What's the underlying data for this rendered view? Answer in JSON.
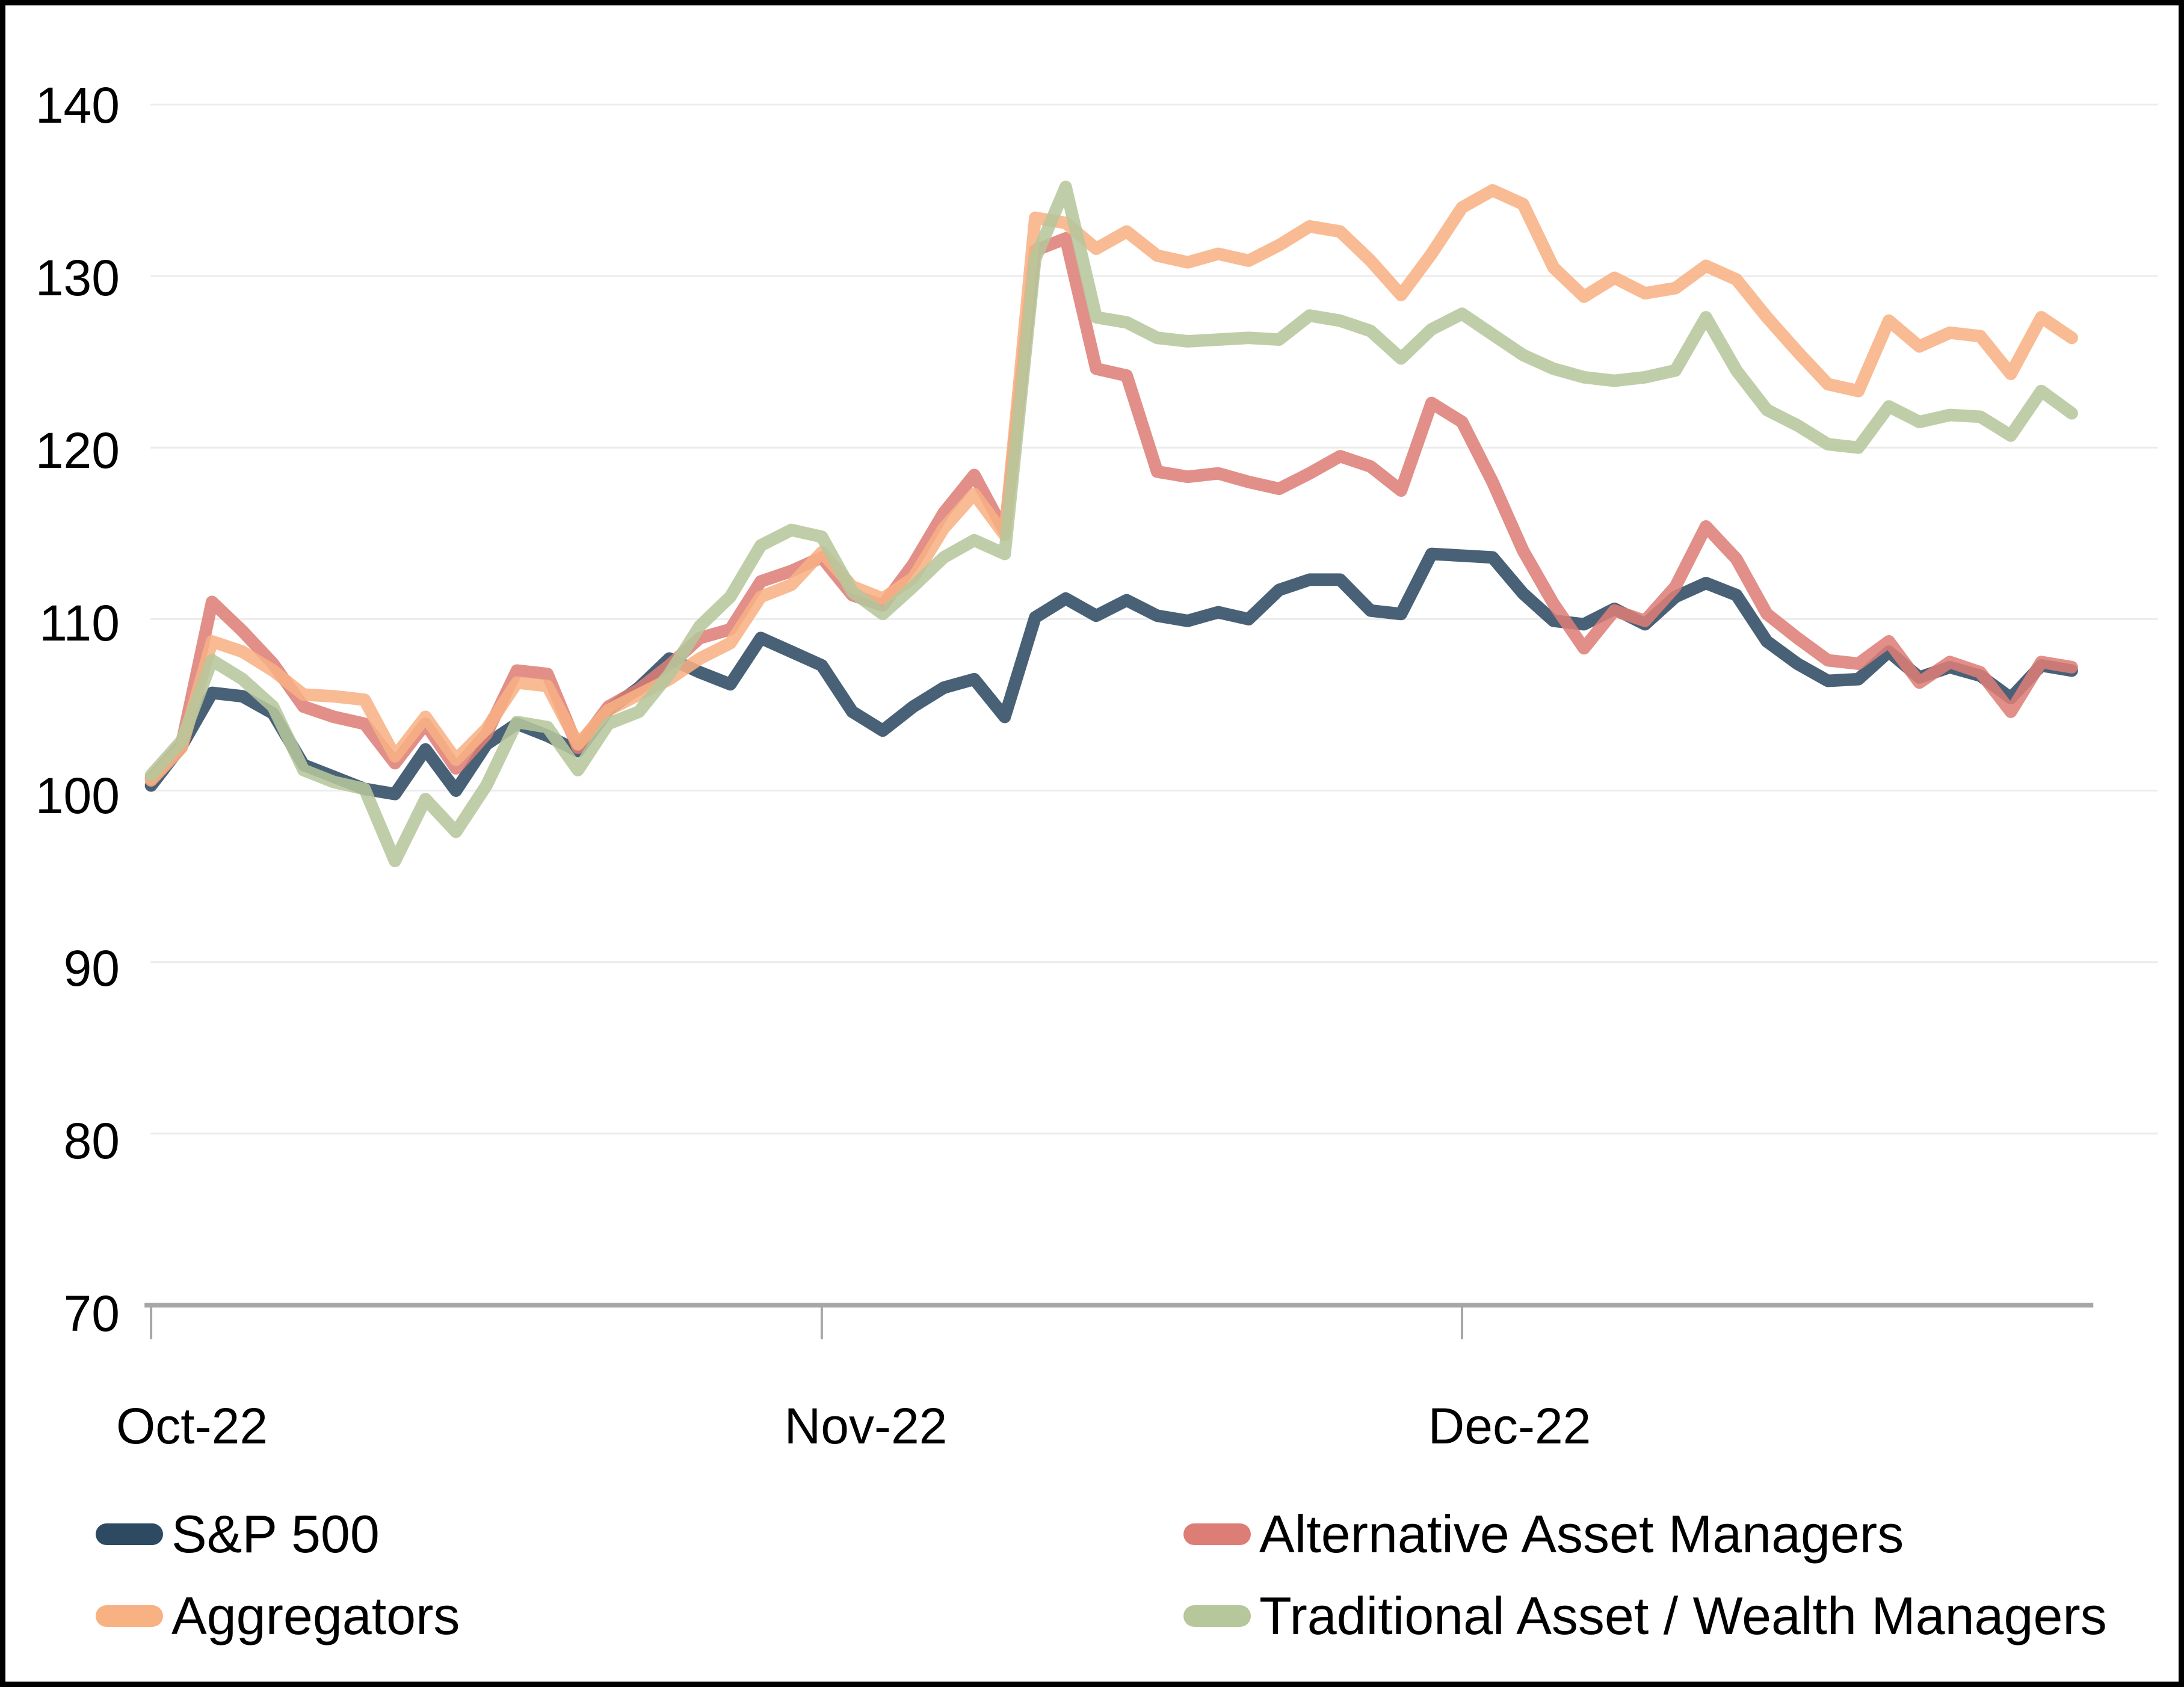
{
  "chart_data": {
    "type": "line",
    "title": "",
    "xlabel": "",
    "ylabel": "",
    "ylim": [
      70,
      140
    ],
    "grid": "horizontal",
    "y_ticks": [
      140,
      130,
      120,
      110,
      100,
      90,
      80,
      70
    ],
    "y_tick_labels": [
      "140",
      "130",
      "120",
      "110",
      "100",
      "90",
      "80",
      "70"
    ],
    "x_tick_labels": [
      "Oct-22",
      "Nov-22",
      "Dec-22"
    ],
    "x_tick_indices": [
      0,
      22,
      43
    ],
    "x_dates": [
      "Sep-30",
      "Oct-3",
      "Oct-4",
      "Oct-5",
      "Oct-6",
      "Oct-7",
      "Oct-10",
      "Oct-11",
      "Oct-12",
      "Oct-13",
      "Oct-14",
      "Oct-17",
      "Oct-18",
      "Oct-19",
      "Oct-20",
      "Oct-21",
      "Oct-24",
      "Oct-25",
      "Oct-26",
      "Oct-27",
      "Oct-28",
      "Oct-31",
      "Nov-1",
      "Nov-2",
      "Nov-3",
      "Nov-4",
      "Nov-7",
      "Nov-8",
      "Nov-9",
      "Nov-10",
      "Nov-11",
      "Nov-14",
      "Nov-15",
      "Nov-16",
      "Nov-17",
      "Nov-18",
      "Nov-21",
      "Nov-22",
      "Nov-23",
      "Nov-25",
      "Nov-28",
      "Nov-29",
      "Nov-30",
      "Dec-1",
      "Dec-2",
      "Dec-5",
      "Dec-6",
      "Dec-7",
      "Dec-8",
      "Dec-9",
      "Dec-12",
      "Dec-13",
      "Dec-14",
      "Dec-15",
      "Dec-16",
      "Dec-19",
      "Dec-20",
      "Dec-21",
      "Dec-22",
      "Dec-23",
      "Dec-27",
      "Dec-28",
      "Dec-29",
      "Dec-30"
    ],
    "series": [
      {
        "name": "S&P 500",
        "color": "#2E4A63",
        "values": [
          100.3,
          102.6,
          105.7,
          105.5,
          104.5,
          101.5,
          100.8,
          100.1,
          99.8,
          102.4,
          100.0,
          102.7,
          103.9,
          103.2,
          102.3,
          104.7,
          106.0,
          107.7,
          106.9,
          106.2,
          108.9,
          108.1,
          107.3,
          104.6,
          103.5,
          104.9,
          106.0,
          106.5,
          104.3,
          110.1,
          111.2,
          110.2,
          111.1,
          110.2,
          109.9,
          110.4,
          110.0,
          111.7,
          112.3,
          112.3,
          110.5,
          110.3,
          113.8,
          113.7,
          113.6,
          111.5,
          109.9,
          109.7,
          110.6,
          109.7,
          111.3,
          112.1,
          111.4,
          108.7,
          107.4,
          106.4,
          106.5,
          108.1,
          106.6,
          107.2,
          106.7,
          105.4,
          107.3,
          107.0
        ]
      },
      {
        "name": "Alternative Asset Managers",
        "color": "#DD7E76",
        "values": [
          100.7,
          102.7,
          111.0,
          109.3,
          107.4,
          104.9,
          104.3,
          103.9,
          101.6,
          103.9,
          101.3,
          103.3,
          107.0,
          106.8,
          102.5,
          104.9,
          105.9,
          107.3,
          108.9,
          109.4,
          112.2,
          112.8,
          113.6,
          111.4,
          110.8,
          113.2,
          116.2,
          118.4,
          115.1,
          131.5,
          132.2,
          124.6,
          124.2,
          118.6,
          118.3,
          118.5,
          118.0,
          117.6,
          118.5,
          119.5,
          118.9,
          117.5,
          122.6,
          121.5,
          118.0,
          114.0,
          110.9,
          108.3,
          110.5,
          109.9,
          111.9,
          115.4,
          113.5,
          110.3,
          108.9,
          107.6,
          107.4,
          108.7,
          106.3,
          107.5,
          106.9,
          104.6,
          107.5,
          107.2
        ]
      },
      {
        "name": "Aggregators",
        "color": "#F8B183",
        "values": [
          100.6,
          102.5,
          108.7,
          108.1,
          107.0,
          105.6,
          105.5,
          105.3,
          102.0,
          104.3,
          101.8,
          103.6,
          106.3,
          106.1,
          102.7,
          104.7,
          105.6,
          106.5,
          107.7,
          108.6,
          111.3,
          112.0,
          113.9,
          111.9,
          111.2,
          112.4,
          115.3,
          117.3,
          114.9,
          133.4,
          133.1,
          131.6,
          132.6,
          131.2,
          130.8,
          131.3,
          130.9,
          131.8,
          132.9,
          132.6,
          130.9,
          128.9,
          131.3,
          134.0,
          135.0,
          134.2,
          130.5,
          128.8,
          129.9,
          129.0,
          129.3,
          130.6,
          129.8,
          127.6,
          125.6,
          123.7,
          123.3,
          127.4,
          125.9,
          126.7,
          126.5,
          124.3,
          127.6,
          126.4
        ]
      },
      {
        "name": "Traditional Asset / Wealth Managers",
        "color": "#B5C79B",
        "values": [
          100.9,
          102.9,
          107.6,
          106.5,
          104.9,
          101.2,
          100.5,
          100.1,
          95.9,
          99.5,
          97.6,
          100.3,
          104.0,
          103.7,
          101.2,
          103.9,
          104.6,
          106.8,
          109.6,
          111.3,
          114.3,
          115.2,
          114.8,
          111.6,
          110.3,
          111.9,
          113.6,
          114.6,
          113.8,
          131.0,
          135.2,
          127.6,
          127.3,
          126.4,
          126.2,
          126.3,
          126.4,
          126.3,
          127.7,
          127.4,
          126.8,
          125.2,
          126.9,
          127.8,
          126.6,
          125.4,
          124.6,
          124.1,
          123.9,
          124.1,
          124.5,
          127.6,
          124.5,
          122.2,
          121.3,
          120.2,
          120.0,
          122.4,
          121.5,
          121.9,
          121.8,
          120.7,
          123.3,
          122.0
        ]
      }
    ],
    "legend": [
      {
        "label": "S&P 500",
        "color": "#2E4A63"
      },
      {
        "label": "Aggregators",
        "color": "#F8B183"
      },
      {
        "label": "Alternative Asset Managers",
        "color": "#DD7E76"
      },
      {
        "label": "Traditional Asset / Wealth Managers",
        "color": "#B5C79B"
      }
    ],
    "style": {
      "gridline_color": "#ECECEC",
      "axis_color": "#A6A6A6",
      "background": "#FFFFFF",
      "frame_color": "#000000",
      "line_width": 21,
      "line_opacity": 0.87
    }
  }
}
